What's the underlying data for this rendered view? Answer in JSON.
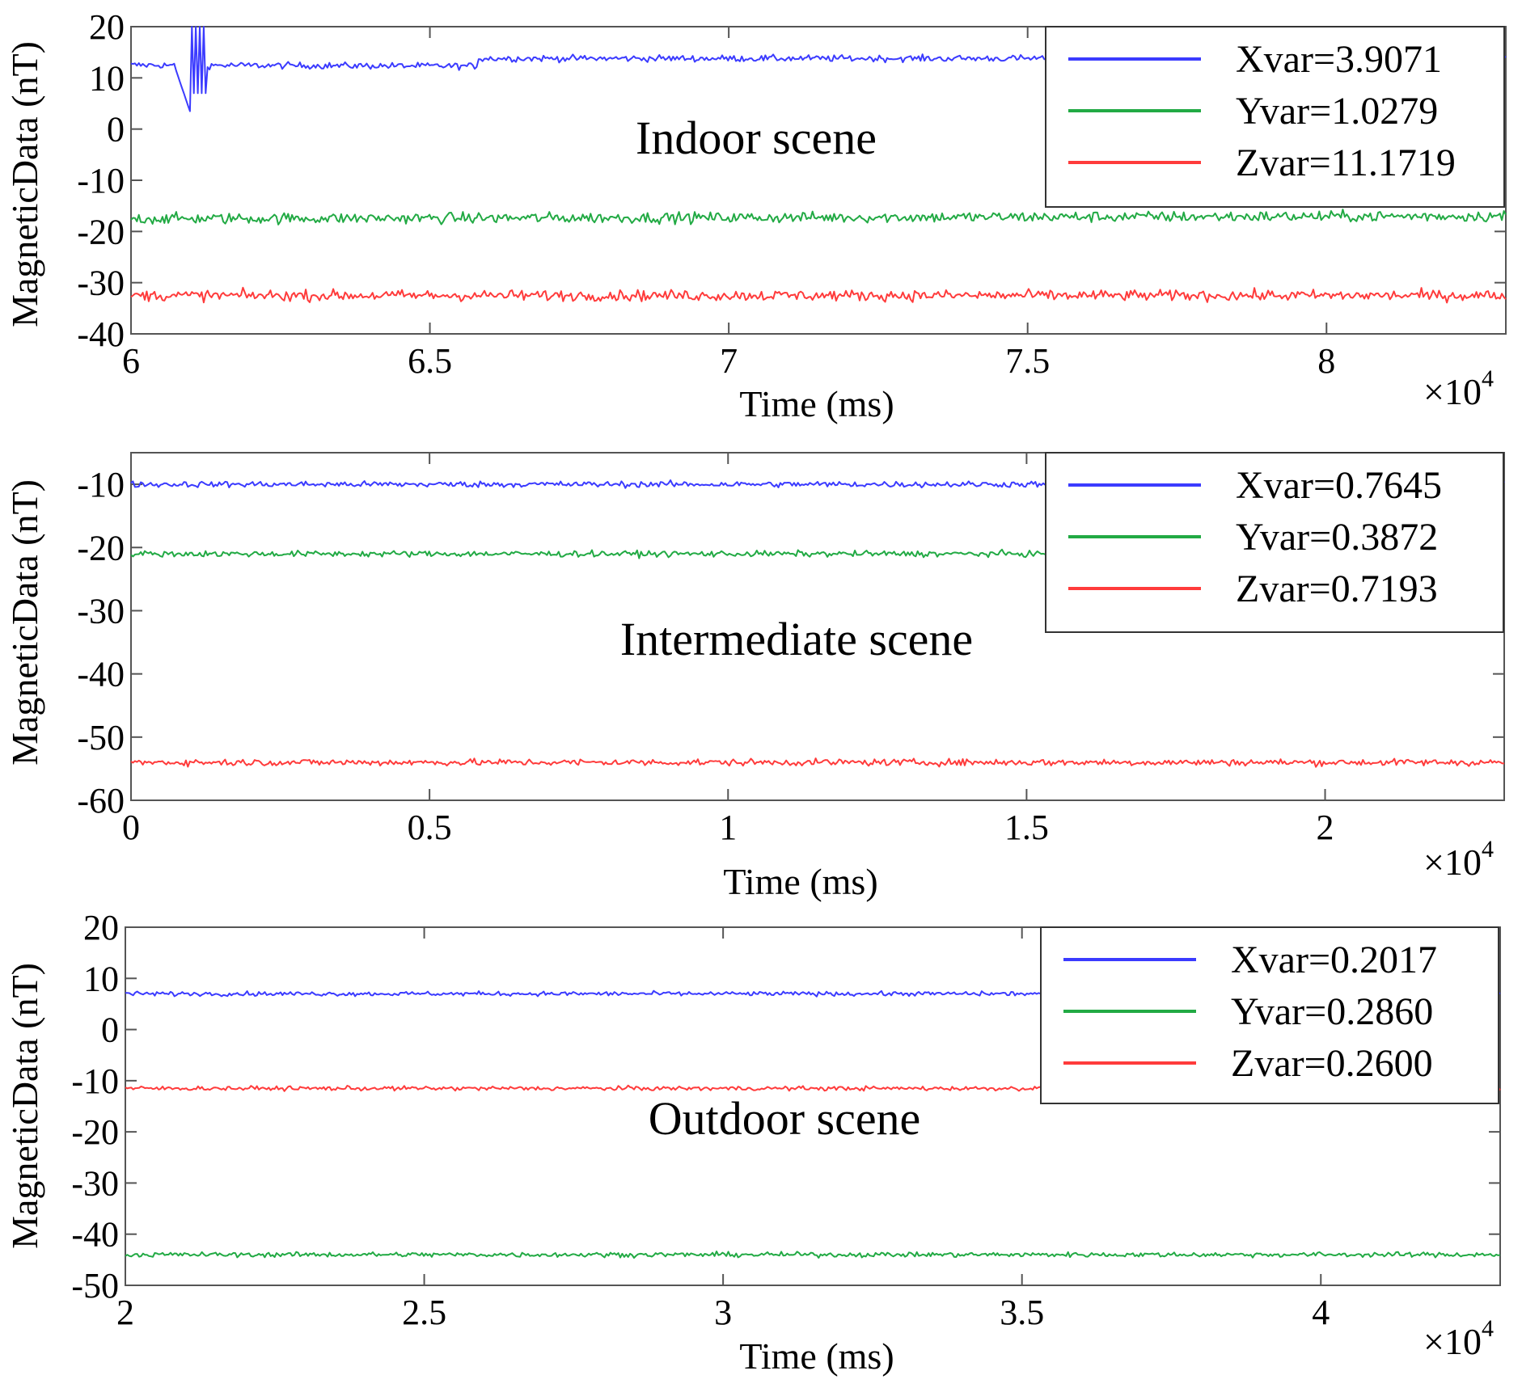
{
  "chart_data": [
    {
      "type": "line",
      "title": "Indoor scene",
      "xlabel": "Time (ms)",
      "ylabel": "MagneticData (nT)",
      "x_multiplier": "×10",
      "x_exponent": "4",
      "xlim": [
        6.0,
        8.3
      ],
      "ylim": [
        -40,
        20
      ],
      "xticks": [
        6,
        6.5,
        7,
        7.5,
        8
      ],
      "xtick_labels": [
        "6",
        "6.5",
        "7",
        "7.5",
        "8"
      ],
      "yticks": [
        20,
        10,
        0,
        -10,
        -20,
        -30,
        -40
      ],
      "ytick_labels": [
        "20",
        "10",
        "0",
        "-10",
        "-20",
        "-30",
        "-40"
      ],
      "legend_position": "top-right",
      "series": [
        {
          "name": "Xvar=3.9071",
          "color": "#3b3bff",
          "mean": 12.5,
          "noise": 0.6,
          "segments": [
            [
              6.0,
              12.5
            ],
            [
              6.58,
              12.3
            ],
            [
              6.58,
              13.8
            ],
            [
              8.3,
              13.8
            ]
          ],
          "events": [
            {
              "x": 6.1,
              "kind": "spike",
              "low": 3,
              "high": 22
            }
          ]
        },
        {
          "name": "Yvar=1.0279",
          "color": "#22aa44",
          "mean": -17.0,
          "noise": 1.0,
          "segments": [
            [
              6.0,
              -17.5
            ],
            [
              8.3,
              -17.0
            ]
          ]
        },
        {
          "name": "Zvar=11.1719",
          "color": "#ff3b3b",
          "mean": -32.5,
          "noise": 1.0,
          "segments": [
            [
              6.0,
              -32.5
            ],
            [
              8.3,
              -32.5
            ]
          ]
        }
      ]
    },
    {
      "type": "line",
      "title": "Intermediate scene",
      "xlabel": "Time (ms)",
      "ylabel": "MagneticData (nT)",
      "x_multiplier": "×10",
      "x_exponent": "4",
      "xlim": [
        0,
        2.3
      ],
      "ylim": [
        -60,
        -5
      ],
      "xticks": [
        0,
        0.5,
        1,
        1.5,
        2
      ],
      "xtick_labels": [
        "0",
        "0.5",
        "1",
        "1.5",
        "2"
      ],
      "yticks": [
        -10,
        -20,
        -30,
        -40,
        -50,
        -60
      ],
      "ytick_labels": [
        "-10",
        "-20",
        "-30",
        "-40",
        "-50",
        "-60"
      ],
      "legend_position": "top-right",
      "series": [
        {
          "name": "Xvar=0.7645",
          "color": "#3b3bff",
          "mean": -10.0,
          "noise": 0.45,
          "segments": [
            [
              0,
              -10.0
            ],
            [
              2.3,
              -10.0
            ]
          ]
        },
        {
          "name": "Yvar=0.3872",
          "color": "#22aa44",
          "mean": -21.0,
          "noise": 0.45,
          "segments": [
            [
              0,
              -21.0
            ],
            [
              2.3,
              -21.0
            ]
          ]
        },
        {
          "name": "Zvar=0.7193",
          "color": "#ff3b3b",
          "mean": -54.0,
          "noise": 0.5,
          "segments": [
            [
              0,
              -54.0
            ],
            [
              2.3,
              -54.0
            ]
          ]
        }
      ]
    },
    {
      "type": "line",
      "title": "Outdoor scene",
      "xlabel": "Time (ms)",
      "ylabel": "MagneticData (nT)",
      "x_multiplier": "×10",
      "x_exponent": "4",
      "xlim": [
        2.0,
        4.3
      ],
      "ylim": [
        -50,
        20
      ],
      "xticks": [
        2,
        2.5,
        3,
        3.5,
        4
      ],
      "xtick_labels": [
        "2",
        "2.5",
        "3",
        "3.5",
        "4"
      ],
      "yticks": [
        20,
        10,
        0,
        -10,
        -20,
        -30,
        -40,
        -50
      ],
      "ytick_labels": [
        "20",
        "10",
        "0",
        "-10",
        "-20",
        "-30",
        "-40",
        "-50"
      ],
      "legend_position": "top-right",
      "series": [
        {
          "name": "Xvar=0.2017",
          "color": "#3b3bff",
          "mean": 7.0,
          "noise": 0.4,
          "segments": [
            [
              2.0,
              7.0
            ],
            [
              4.3,
              7.0
            ]
          ]
        },
        {
          "name": "Yvar=0.2860",
          "color": "#22aa44",
          "mean": -44.0,
          "noise": 0.45,
          "segments": [
            [
              2.0,
              -44.0
            ],
            [
              4.3,
              -44.0
            ]
          ]
        },
        {
          "name": "Zvar=0.2600",
          "color": "#ff3b3b",
          "mean": -11.5,
          "noise": 0.4,
          "segments": [
            [
              2.0,
              -11.5
            ],
            [
              4.3,
              -11.5
            ]
          ]
        }
      ]
    }
  ]
}
